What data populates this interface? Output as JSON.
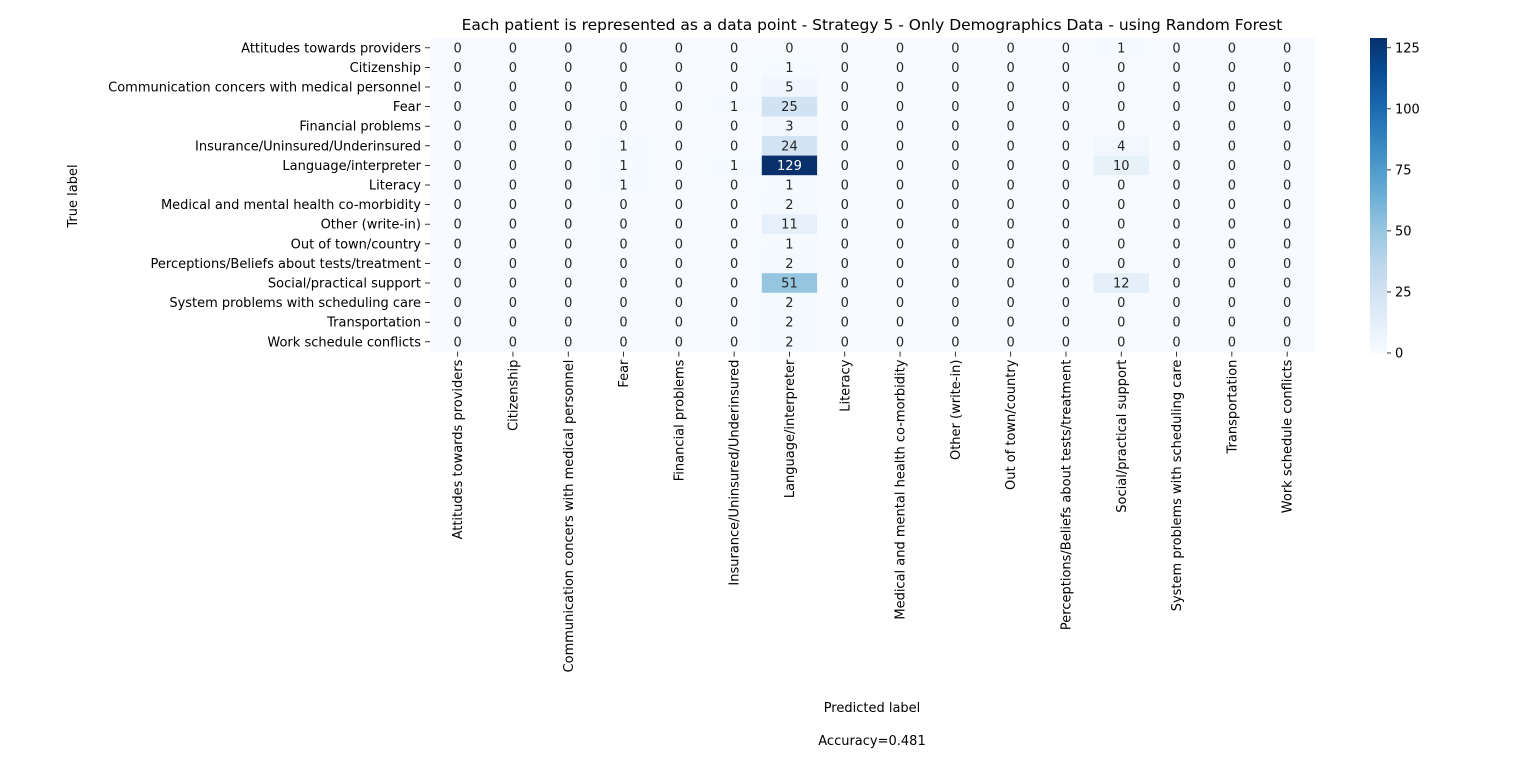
{
  "chart_data": {
    "type": "heatmap",
    "title": "Each patient is represented as a data point - Strategy 5 - Only Demographics Data - using Random Forest",
    "xlabel": "Predicted label",
    "ylabel": "True label",
    "annotation": "Accuracy=0.481",
    "colormap": "Blues",
    "color_min": "#f7fbff",
    "color_max": "#08306b",
    "vmin": 0,
    "vmax": 129,
    "colorbar_ticks": [
      0,
      25,
      50,
      75,
      100,
      125
    ],
    "rows": [
      "Attitudes towards providers",
      "Citizenship",
      "Communication concers with medical personnel",
      "Fear",
      "Financial problems",
      "Insurance/Uninsured/Underinsured",
      "Language/interpreter",
      "Literacy",
      "Medical and mental health co-morbidity",
      "Other (write-in)",
      "Out of town/country",
      "Perceptions/Beliefs about tests/treatment",
      "Social/practical support",
      "System problems with scheduling care",
      "Transportation",
      "Work schedule conflicts"
    ],
    "columns": [
      "Attitudes towards providers",
      "Citizenship",
      "Communication concers with medical personnel",
      "Fear",
      "Financial problems",
      "Insurance/Uninsured/Underinsured",
      "Language/interpreter",
      "Literacy",
      "Medical and mental health co-morbidity",
      "Other (write-in)",
      "Out of town/country",
      "Perceptions/Beliefs about tests/treatment",
      "Social/practical support",
      "System problems with scheduling care",
      "Transportation",
      "Work schedule conflicts"
    ],
    "values": [
      [
        0,
        0,
        0,
        0,
        0,
        0,
        0,
        0,
        0,
        0,
        0,
        0,
        1,
        0,
        0,
        0
      ],
      [
        0,
        0,
        0,
        0,
        0,
        0,
        1,
        0,
        0,
        0,
        0,
        0,
        0,
        0,
        0,
        0
      ],
      [
        0,
        0,
        0,
        0,
        0,
        0,
        5,
        0,
        0,
        0,
        0,
        0,
        0,
        0,
        0,
        0
      ],
      [
        0,
        0,
        0,
        0,
        0,
        1,
        25,
        0,
        0,
        0,
        0,
        0,
        0,
        0,
        0,
        0
      ],
      [
        0,
        0,
        0,
        0,
        0,
        0,
        3,
        0,
        0,
        0,
        0,
        0,
        0,
        0,
        0,
        0
      ],
      [
        0,
        0,
        0,
        1,
        0,
        0,
        24,
        0,
        0,
        0,
        0,
        0,
        4,
        0,
        0,
        0
      ],
      [
        0,
        0,
        0,
        1,
        0,
        1,
        129,
        0,
        0,
        0,
        0,
        0,
        10,
        0,
        0,
        0
      ],
      [
        0,
        0,
        0,
        1,
        0,
        0,
        1,
        0,
        0,
        0,
        0,
        0,
        0,
        0,
        0,
        0
      ],
      [
        0,
        0,
        0,
        0,
        0,
        0,
        2,
        0,
        0,
        0,
        0,
        0,
        0,
        0,
        0,
        0
      ],
      [
        0,
        0,
        0,
        0,
        0,
        0,
        11,
        0,
        0,
        0,
        0,
        0,
        0,
        0,
        0,
        0
      ],
      [
        0,
        0,
        0,
        0,
        0,
        0,
        1,
        0,
        0,
        0,
        0,
        0,
        0,
        0,
        0,
        0
      ],
      [
        0,
        0,
        0,
        0,
        0,
        0,
        2,
        0,
        0,
        0,
        0,
        0,
        0,
        0,
        0,
        0
      ],
      [
        0,
        0,
        0,
        0,
        0,
        0,
        51,
        0,
        0,
        0,
        0,
        0,
        12,
        0,
        0,
        0
      ],
      [
        0,
        0,
        0,
        0,
        0,
        0,
        2,
        0,
        0,
        0,
        0,
        0,
        0,
        0,
        0,
        0
      ],
      [
        0,
        0,
        0,
        0,
        0,
        0,
        2,
        0,
        0,
        0,
        0,
        0,
        0,
        0,
        0,
        0
      ],
      [
        0,
        0,
        0,
        0,
        0,
        0,
        2,
        0,
        0,
        0,
        0,
        0,
        0,
        0,
        0,
        0
      ]
    ]
  }
}
